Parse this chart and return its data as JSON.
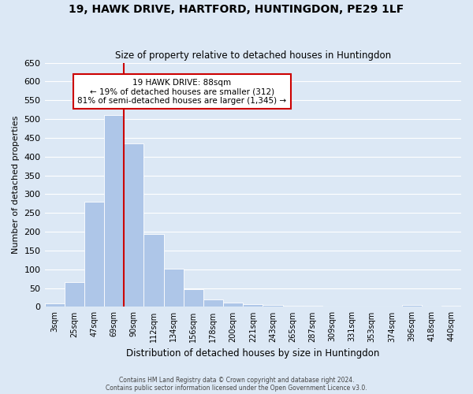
{
  "title": "19, HAWK DRIVE, HARTFORD, HUNTINGDON, PE29 1LF",
  "subtitle": "Size of property relative to detached houses in Huntingdon",
  "xlabel": "Distribution of detached houses by size in Huntingdon",
  "ylabel": "Number of detached properties",
  "bar_color": "#aec6e8",
  "categories": [
    "3sqm",
    "25sqm",
    "47sqm",
    "69sqm",
    "90sqm",
    "112sqm",
    "134sqm",
    "156sqm",
    "178sqm",
    "200sqm",
    "221sqm",
    "243sqm",
    "265sqm",
    "287sqm",
    "309sqm",
    "331sqm",
    "353sqm",
    "374sqm",
    "396sqm",
    "418sqm",
    "440sqm"
  ],
  "values": [
    10,
    65,
    280,
    510,
    435,
    193,
    102,
    47,
    20,
    12,
    8,
    5,
    3,
    2,
    0,
    0,
    0,
    0,
    5,
    0,
    3
  ],
  "ylim": [
    0,
    650
  ],
  "yticks": [
    0,
    50,
    100,
    150,
    200,
    250,
    300,
    350,
    400,
    450,
    500,
    550,
    600,
    650
  ],
  "red_line_x": 3.5,
  "marker_label": "19 HAWK DRIVE: 88sqm",
  "annotation_line1": "← 19% of detached houses are smaller (312)",
  "annotation_line2": "81% of semi-detached houses are larger (1,345) →",
  "annotation_box_color": "#ffffff",
  "annotation_box_edge_color": "#cc0000",
  "marker_line_color": "#cc0000",
  "footer1": "Contains HM Land Registry data © Crown copyright and database right 2024.",
  "footer2": "Contains public sector information licensed under the Open Government Licence v3.0.",
  "background_color": "#dce8f5",
  "plot_background_color": "#dce8f5",
  "grid_color": "#ffffff"
}
